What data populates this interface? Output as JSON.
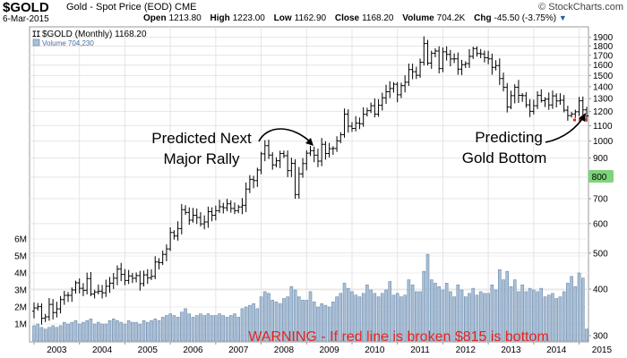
{
  "header": {
    "symbol": "$GOLD",
    "description": "Gold - Spot Price (EOD)",
    "exchange": "CME",
    "brand": "© StockCharts.com",
    "date": "6-Mar-2015",
    "open_label": "Open",
    "open_value": "1213.80",
    "high_label": "High",
    "high_value": "1223.00",
    "low_label": "Low",
    "low_value": "1162.90",
    "close_label": "Close",
    "close_value": "1168.20",
    "volume_label": "Volume",
    "volume_value": "704.2K",
    "chg_label": "Chg",
    "chg_value": "-45.50 (-3.75%)"
  },
  "legend": {
    "price": "$GOLD (Monthly) 1168.20",
    "volume": "Volume 704,230"
  },
  "annotations": {
    "rally_line1": "Predicted Next",
    "rally_line2": "Major Rally",
    "bottom_line1": "Predicting",
    "bottom_line2": "Gold Bottom",
    "warning": "WARNING - If red line is broken $815 is bottom"
  },
  "colors": {
    "volume_fill": "#a9bfd6",
    "volume_stroke": "#5d7ea3",
    "warning": "#e8251f",
    "support_line": "#e8251f",
    "price_marker": "#7dd47a"
  },
  "chart_data": {
    "type": "ohlc",
    "title": "$GOLD (Monthly)",
    "x_tick_labels": [
      "2003",
      "2004",
      "2005",
      "2006",
      "2007",
      "2008",
      "2009",
      "2010",
      "2011",
      "2012",
      "2013",
      "2014",
      "2015"
    ],
    "y_tick_labels": [
      "1900",
      "1800",
      "1700",
      "1600",
      "1500",
      "1400",
      "1300",
      "1200",
      "1100",
      "1000",
      "900",
      "800",
      "700",
      "600",
      "500",
      "400",
      "300"
    ],
    "y_scale": "log",
    "ylim": [
      300,
      1950
    ],
    "current_price_marker": 800,
    "support_level": 1130,
    "volume_tick_labels": [
      "6M",
      "5M",
      "4M",
      "3M",
      "2M",
      "1M"
    ],
    "volume_ylim": [
      0,
      6000000
    ],
    "monthly_close": [
      {
        "year": 2003,
        "close": [
          356,
          359,
          334,
          337,
          364,
          346,
          354,
          375,
          385,
          385,
          398,
          416
        ]
      },
      {
        "year": 2004,
        "close": [
          402,
          397,
          427,
          388,
          393,
          395,
          391,
          407,
          415,
          428,
          453,
          438
        ]
      },
      {
        "year": 2005,
        "close": [
          422,
          434,
          428,
          435,
          414,
          437,
          429,
          433,
          473,
          471,
          496,
          513
        ]
      },
      {
        "year": 2006,
        "close": [
          568,
          556,
          582,
          654,
          643,
          613,
          632,
          623,
          599,
          606,
          646,
          632
        ]
      },
      {
        "year": 2007,
        "close": [
          650,
          666,
          662,
          678,
          659,
          650,
          665,
          672,
          743,
          789,
          783,
          836
        ]
      },
      {
        "year": 2008,
        "close": [
          924,
          972,
          917,
          863,
          885,
          926,
          913,
          833,
          871,
          718,
          816,
          870
        ]
      },
      {
        "year": 2009,
        "close": [
          928,
          942,
          916,
          883,
          980,
          926,
          954,
          955,
          1001,
          1040,
          1181,
          1096
        ]
      },
      {
        "year": 2010,
        "close": [
          1081,
          1117,
          1113,
          1180,
          1207,
          1244,
          1181,
          1248,
          1307,
          1357,
          1384,
          1421
        ]
      },
      {
        "year": 2011,
        "close": [
          1332,
          1409,
          1439,
          1556,
          1536,
          1502,
          1628,
          1829,
          1620,
          1722,
          1746,
          1566
        ]
      },
      {
        "year": 2012,
        "close": [
          1737,
          1710,
          1662,
          1663,
          1560,
          1604,
          1615,
          1688,
          1772,
          1719,
          1714,
          1675
        ]
      },
      {
        "year": 2013,
        "close": [
          1663,
          1578,
          1595,
          1472,
          1394,
          1234,
          1324,
          1395,
          1327,
          1324,
          1251,
          1202
        ]
      },
      {
        "year": 2014,
        "close": [
          1244,
          1326,
          1284,
          1296,
          1250,
          1322,
          1282,
          1287,
          1210,
          1171,
          1182,
          1199
        ]
      },
      {
        "year": 2015,
        "close": [
          1283,
          1213,
          1168
        ]
      }
    ],
    "monthly_volume": [
      {
        "year": 2003,
        "volume": [
          0.9,
          1.0,
          0.8,
          0.7,
          0.8,
          0.9,
          0.8,
          0.9,
          1.1,
          1.0,
          1.1,
          1.2
        ]
      },
      {
        "year": 2004,
        "volume": [
          1.0,
          1.1,
          1.2,
          1.3,
          1.0,
          1.1,
          1.0,
          1.0,
          1.2,
          1.3,
          1.2,
          1.1
        ]
      },
      {
        "year": 2005,
        "volume": [
          1.0,
          1.2,
          1.1,
          1.1,
          1.0,
          1.2,
          1.1,
          1.2,
          1.3,
          1.2,
          1.4,
          1.5
        ]
      },
      {
        "year": 2006,
        "volume": [
          1.6,
          1.5,
          1.4,
          1.7,
          1.9,
          1.6,
          1.4,
          1.5,
          1.6,
          1.5,
          1.6,
          1.5
        ]
      },
      {
        "year": 2007,
        "volume": [
          1.5,
          1.6,
          1.5,
          1.4,
          1.5,
          1.6,
          1.4,
          1.9,
          2.0,
          2.1,
          2.2,
          1.9
        ]
      },
      {
        "year": 2008,
        "volume": [
          2.6,
          2.9,
          2.8,
          2.4,
          2.3,
          2.2,
          2.5,
          2.6,
          3.2,
          3.0,
          2.6,
          2.4
        ]
      },
      {
        "year": 2009,
        "volume": [
          2.4,
          2.9,
          2.3,
          2.0,
          2.2,
          2.1,
          2.0,
          2.3,
          2.6,
          2.8,
          3.4,
          3.1
        ]
      },
      {
        "year": 2010,
        "volume": [
          2.9,
          2.7,
          2.6,
          2.8,
          3.3,
          3.0,
          2.8,
          2.6,
          2.8,
          3.0,
          3.5,
          2.7
        ]
      },
      {
        "year": 2011,
        "volume": [
          2.8,
          2.6,
          2.7,
          3.6,
          3.3,
          2.9,
          2.9,
          4.1,
          5.1,
          3.6,
          3.4,
          3.2
        ]
      },
      {
        "year": 2012,
        "volume": [
          3.0,
          3.4,
          2.9,
          2.6,
          3.3,
          3.0,
          2.6,
          2.8,
          3.1,
          2.7,
          2.9,
          2.8
        ]
      },
      {
        "year": 2013,
        "volume": [
          2.8,
          3.3,
          3.0,
          4.2,
          3.6,
          4.1,
          3.2,
          3.6,
          2.9,
          3.3,
          2.9,
          3.1
        ]
      },
      {
        "year": 2014,
        "volume": [
          3.0,
          2.9,
          3.1,
          2.6,
          2.7,
          2.8,
          2.5,
          2.6,
          2.9,
          3.4,
          3.8,
          3.2
        ]
      },
      {
        "year": 2015,
        "volume": [
          4.0,
          3.7,
          0.7
        ]
      }
    ]
  }
}
